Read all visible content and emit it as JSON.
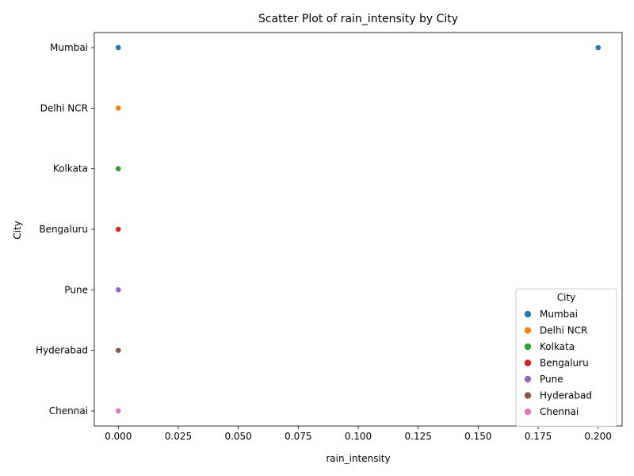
{
  "chart_data": {
    "type": "scatter",
    "title": "Scatter Plot of rain_intensity by City",
    "xlabel": "rain_intensity",
    "ylabel": "City",
    "xlim": [
      -0.01,
      0.21
    ],
    "x_ticks": [
      0.0,
      0.025,
      0.05,
      0.075,
      0.1,
      0.125,
      0.15,
      0.175,
      0.2
    ],
    "x_tick_labels": [
      "0.000",
      "0.025",
      "0.050",
      "0.075",
      "0.100",
      "0.125",
      "0.150",
      "0.175",
      "0.200"
    ],
    "categories": [
      "Mumbai",
      "Delhi NCR",
      "Kolkata",
      "Bengaluru",
      "Pune",
      "Hyderabad",
      "Chennai"
    ],
    "grid": false,
    "legend": {
      "title": "City",
      "position": "lower-right"
    },
    "series": [
      {
        "name": "Mumbai",
        "color": "#1f77b4",
        "points": [
          {
            "x": 0.0,
            "y": "Mumbai"
          },
          {
            "x": 0.2,
            "y": "Mumbai"
          }
        ]
      },
      {
        "name": "Delhi NCR",
        "color": "#ff7f0e",
        "points": [
          {
            "x": 0.0,
            "y": "Delhi NCR"
          }
        ]
      },
      {
        "name": "Kolkata",
        "color": "#2ca02c",
        "points": [
          {
            "x": 0.0,
            "y": "Kolkata"
          }
        ]
      },
      {
        "name": "Bengaluru",
        "color": "#d62728",
        "points": [
          {
            "x": 0.0,
            "y": "Bengaluru"
          }
        ]
      },
      {
        "name": "Pune",
        "color": "#9467bd",
        "points": [
          {
            "x": 0.0,
            "y": "Pune"
          }
        ]
      },
      {
        "name": "Hyderabad",
        "color": "#8c564b",
        "points": [
          {
            "x": 0.0,
            "y": "Hyderabad"
          }
        ]
      },
      {
        "name": "Chennai",
        "color": "#e377c2",
        "points": [
          {
            "x": 0.0,
            "y": "Chennai"
          }
        ]
      }
    ]
  }
}
